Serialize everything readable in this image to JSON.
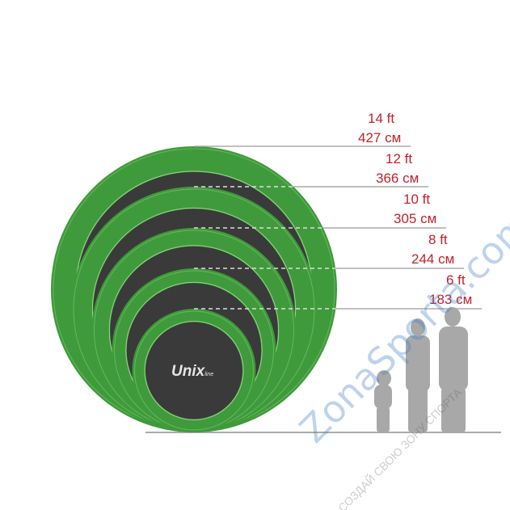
{
  "sizes": [
    {
      "ft": "14 ft",
      "cm": "427 см"
    },
    {
      "ft": "12 ft",
      "cm": "366 см"
    },
    {
      "ft": "10 ft",
      "cm": "305 см"
    },
    {
      "ft": "8 ft",
      "cm": "244 см"
    },
    {
      "ft": "6 ft",
      "cm": "183 см"
    }
  ],
  "logo": {
    "main": "Unix",
    "sub": "line"
  },
  "watermark": {
    "brand": "ZonaSporta.com",
    "slogan": "СОЗДАЙ СВОЮ ЗОНУ СПОРТА"
  },
  "colors": {
    "pad": "#3f9a3c",
    "mat": "#3a3a3a",
    "label": "#c0222c",
    "line": "#aaaaaa",
    "silhouette": "#a8a8a8"
  }
}
